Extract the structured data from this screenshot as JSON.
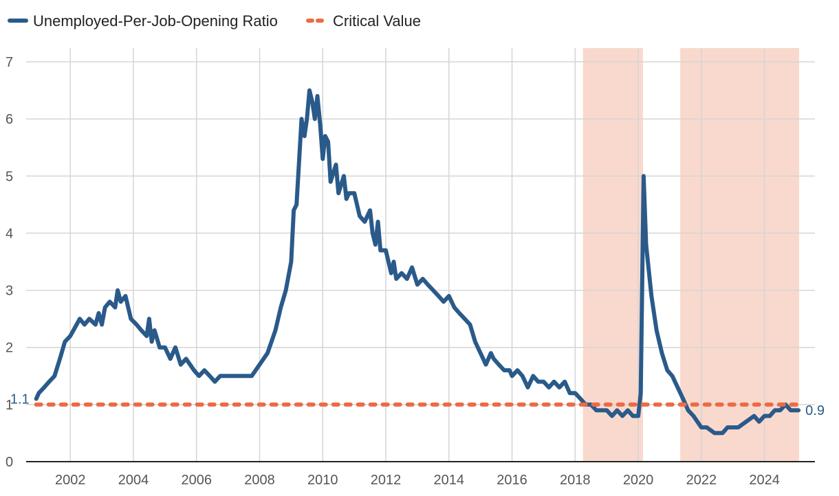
{
  "chart_data": {
    "type": "line",
    "title": "",
    "xlabel": "",
    "ylabel": "",
    "xlim": [
      2000.6,
      2025.6
    ],
    "ylim": [
      0,
      7
    ],
    "x_ticks": [
      2002,
      2004,
      2006,
      2008,
      2010,
      2012,
      2014,
      2016,
      2018,
      2020,
      2022,
      2024
    ],
    "y_ticks": [
      0,
      1,
      2,
      3,
      4,
      5,
      6,
      7
    ],
    "grid": true,
    "legend_position": "top-left",
    "shaded_periods": [
      [
        2018.25,
        2020.15
      ],
      [
        2021.33,
        2025.1
      ]
    ],
    "shade_color": "#f9d9cd",
    "series": [
      {
        "name": "Unemployed-Per-Job-Opening Ratio",
        "color": "#2a5a8a",
        "start_label": "1.1",
        "end_label": "0.9",
        "points": [
          [
            2000.92,
            1.1
          ],
          [
            2001.0,
            1.2
          ],
          [
            2001.17,
            1.3
          ],
          [
            2001.33,
            1.4
          ],
          [
            2001.5,
            1.5
          ],
          [
            2001.67,
            1.8
          ],
          [
            2001.83,
            2.1
          ],
          [
            2002.0,
            2.2
          ],
          [
            2002.1,
            2.3
          ],
          [
            2002.2,
            2.4
          ],
          [
            2002.3,
            2.5
          ],
          [
            2002.45,
            2.4
          ],
          [
            2002.6,
            2.5
          ],
          [
            2002.8,
            2.4
          ],
          [
            2002.9,
            2.6
          ],
          [
            2003.0,
            2.4
          ],
          [
            2003.1,
            2.7
          ],
          [
            2003.25,
            2.8
          ],
          [
            2003.42,
            2.7
          ],
          [
            2003.5,
            3.0
          ],
          [
            2003.6,
            2.8
          ],
          [
            2003.75,
            2.9
          ],
          [
            2003.92,
            2.5
          ],
          [
            2004.1,
            2.4
          ],
          [
            2004.25,
            2.3
          ],
          [
            2004.42,
            2.2
          ],
          [
            2004.5,
            2.5
          ],
          [
            2004.58,
            2.1
          ],
          [
            2004.67,
            2.3
          ],
          [
            2004.83,
            2.0
          ],
          [
            2005.0,
            2.0
          ],
          [
            2005.17,
            1.8
          ],
          [
            2005.33,
            2.0
          ],
          [
            2005.5,
            1.7
          ],
          [
            2005.67,
            1.8
          ],
          [
            2005.92,
            1.6
          ],
          [
            2006.08,
            1.5
          ],
          [
            2006.25,
            1.6
          ],
          [
            2006.42,
            1.5
          ],
          [
            2006.58,
            1.4
          ],
          [
            2006.75,
            1.5
          ],
          [
            2007.0,
            1.5
          ],
          [
            2007.25,
            1.5
          ],
          [
            2007.5,
            1.5
          ],
          [
            2007.75,
            1.5
          ],
          [
            2008.0,
            1.7
          ],
          [
            2008.25,
            1.9
          ],
          [
            2008.5,
            2.3
          ],
          [
            2008.67,
            2.7
          ],
          [
            2008.83,
            3.0
          ],
          [
            2009.0,
            3.5
          ],
          [
            2009.08,
            4.4
          ],
          [
            2009.17,
            4.5
          ],
          [
            2009.33,
            6.0
          ],
          [
            2009.42,
            5.7
          ],
          [
            2009.5,
            6.0
          ],
          [
            2009.58,
            6.5
          ],
          [
            2009.67,
            6.3
          ],
          [
            2009.75,
            6.0
          ],
          [
            2009.83,
            6.4
          ],
          [
            2009.92,
            5.9
          ],
          [
            2010.0,
            5.3
          ],
          [
            2010.08,
            5.7
          ],
          [
            2010.17,
            5.6
          ],
          [
            2010.25,
            4.9
          ],
          [
            2010.42,
            5.2
          ],
          [
            2010.5,
            4.7
          ],
          [
            2010.67,
            5.0
          ],
          [
            2010.75,
            4.6
          ],
          [
            2010.83,
            4.7
          ],
          [
            2011.0,
            4.7
          ],
          [
            2011.17,
            4.3
          ],
          [
            2011.33,
            4.2
          ],
          [
            2011.5,
            4.4
          ],
          [
            2011.58,
            4.0
          ],
          [
            2011.67,
            3.8
          ],
          [
            2011.75,
            4.2
          ],
          [
            2011.83,
            3.7
          ],
          [
            2012.0,
            3.7
          ],
          [
            2012.17,
            3.3
          ],
          [
            2012.25,
            3.5
          ],
          [
            2012.33,
            3.2
          ],
          [
            2012.5,
            3.3
          ],
          [
            2012.67,
            3.2
          ],
          [
            2012.83,
            3.4
          ],
          [
            2013.0,
            3.1
          ],
          [
            2013.17,
            3.2
          ],
          [
            2013.33,
            3.1
          ],
          [
            2013.5,
            3.0
          ],
          [
            2013.67,
            2.9
          ],
          [
            2013.83,
            2.8
          ],
          [
            2014.0,
            2.9
          ],
          [
            2014.17,
            2.7
          ],
          [
            2014.33,
            2.6
          ],
          [
            2014.5,
            2.5
          ],
          [
            2014.67,
            2.4
          ],
          [
            2014.83,
            2.1
          ],
          [
            2015.0,
            1.9
          ],
          [
            2015.17,
            1.7
          ],
          [
            2015.33,
            1.9
          ],
          [
            2015.42,
            1.8
          ],
          [
            2015.58,
            1.7
          ],
          [
            2015.75,
            1.6
          ],
          [
            2015.92,
            1.6
          ],
          [
            2016.0,
            1.5
          ],
          [
            2016.17,
            1.6
          ],
          [
            2016.33,
            1.5
          ],
          [
            2016.5,
            1.3
          ],
          [
            2016.67,
            1.5
          ],
          [
            2016.83,
            1.4
          ],
          [
            2017.0,
            1.4
          ],
          [
            2017.17,
            1.3
          ],
          [
            2017.33,
            1.4
          ],
          [
            2017.5,
            1.3
          ],
          [
            2017.67,
            1.4
          ],
          [
            2017.83,
            1.2
          ],
          [
            2018.0,
            1.2
          ],
          [
            2018.17,
            1.1
          ],
          [
            2018.33,
            1.0
          ],
          [
            2018.5,
            1.0
          ],
          [
            2018.67,
            0.9
          ],
          [
            2018.83,
            0.9
          ],
          [
            2019.0,
            0.9
          ],
          [
            2019.17,
            0.8
          ],
          [
            2019.33,
            0.9
          ],
          [
            2019.5,
            0.8
          ],
          [
            2019.67,
            0.9
          ],
          [
            2019.83,
            0.8
          ],
          [
            2020.0,
            0.8
          ],
          [
            2020.08,
            1.2
          ],
          [
            2020.17,
            5.0
          ],
          [
            2020.25,
            3.8
          ],
          [
            2020.42,
            2.9
          ],
          [
            2020.58,
            2.3
          ],
          [
            2020.75,
            1.9
          ],
          [
            2020.92,
            1.6
          ],
          [
            2021.08,
            1.5
          ],
          [
            2021.25,
            1.3
          ],
          [
            2021.42,
            1.1
          ],
          [
            2021.58,
            0.9
          ],
          [
            2021.75,
            0.8
          ],
          [
            2022.0,
            0.6
          ],
          [
            2022.17,
            0.6
          ],
          [
            2022.42,
            0.5
          ],
          [
            2022.67,
            0.5
          ],
          [
            2022.83,
            0.6
          ],
          [
            2023.0,
            0.6
          ],
          [
            2023.17,
            0.6
          ],
          [
            2023.42,
            0.7
          ],
          [
            2023.67,
            0.8
          ],
          [
            2023.83,
            0.7
          ],
          [
            2024.0,
            0.8
          ],
          [
            2024.17,
            0.8
          ],
          [
            2024.33,
            0.9
          ],
          [
            2024.5,
            0.9
          ],
          [
            2024.67,
            1.0
          ],
          [
            2024.83,
            0.9
          ],
          [
            2025.08,
            0.9
          ]
        ]
      },
      {
        "name": "Critical Value",
        "color": "#ec6a45",
        "dashed": true,
        "points": [
          [
            2000.92,
            1.0
          ],
          [
            2025.08,
            1.0
          ]
        ]
      }
    ]
  }
}
